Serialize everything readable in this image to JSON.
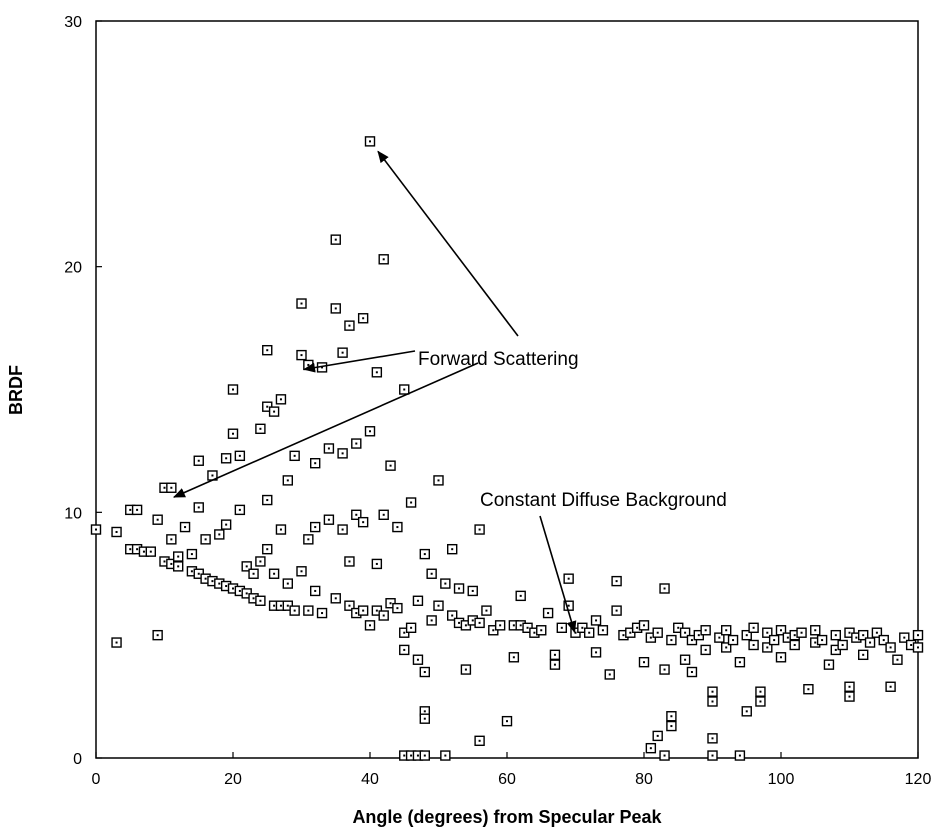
{
  "chart_data": {
    "type": "scatter",
    "xlabel": "Angle (degrees) from Specular Peak",
    "ylabel": "BRDF",
    "xlim": [
      0,
      120
    ],
    "ylim": [
      0,
      30
    ],
    "xticks": [
      "0",
      "20",
      "40",
      "60",
      "80",
      "100",
      "120"
    ],
    "yticks": [
      "0",
      "10",
      "20",
      "30"
    ],
    "grid": false,
    "series": [
      {
        "marker": "square",
        "points": [
          [
            0,
            9.3
          ],
          [
            3,
            4.7
          ],
          [
            3,
            9.2
          ],
          [
            5,
            8.5
          ],
          [
            5,
            10.1
          ],
          [
            6,
            10.1
          ],
          [
            6,
            8.5
          ],
          [
            7,
            8.4
          ],
          [
            8,
            8.4
          ],
          [
            9,
            5.0
          ],
          [
            9,
            9.7
          ],
          [
            10,
            11.0
          ],
          [
            10,
            8.0
          ],
          [
            11,
            11.0
          ],
          [
            11,
            7.9
          ],
          [
            11,
            8.9
          ],
          [
            12,
            8.2
          ],
          [
            12,
            7.8
          ],
          [
            13,
            9.4
          ],
          [
            14,
            7.6
          ],
          [
            14,
            8.3
          ],
          [
            15,
            7.5
          ],
          [
            15,
            10.2
          ],
          [
            15,
            12.1
          ],
          [
            16,
            7.3
          ],
          [
            16,
            8.9
          ],
          [
            17,
            11.5
          ],
          [
            17,
            7.2
          ],
          [
            18,
            9.1
          ],
          [
            18,
            7.1
          ],
          [
            19,
            7.0
          ],
          [
            19,
            9.5
          ],
          [
            19,
            12.2
          ],
          [
            20,
            6.9
          ],
          [
            20,
            13.2
          ],
          [
            20,
            15.0
          ],
          [
            21,
            10.1
          ],
          [
            21,
            6.8
          ],
          [
            21,
            12.3
          ],
          [
            22,
            6.7
          ],
          [
            22,
            7.8
          ],
          [
            23,
            7.5
          ],
          [
            23,
            6.5
          ],
          [
            24,
            13.4
          ],
          [
            24,
            6.4
          ],
          [
            24,
            8.0
          ],
          [
            25,
            16.6
          ],
          [
            25,
            14.3
          ],
          [
            25,
            10.5
          ],
          [
            25,
            8.5
          ],
          [
            26,
            14.1
          ],
          [
            26,
            6.2
          ],
          [
            26,
            7.5
          ],
          [
            27,
            14.6
          ],
          [
            27,
            6.2
          ],
          [
            27,
            9.3
          ],
          [
            28,
            11.3
          ],
          [
            28,
            6.2
          ],
          [
            28,
            7.1
          ],
          [
            29,
            6.0
          ],
          [
            29,
            12.3
          ],
          [
            30,
            18.5
          ],
          [
            30,
            16.4
          ],
          [
            30,
            7.6
          ],
          [
            31,
            16.0
          ],
          [
            31,
            8.9
          ],
          [
            31,
            6.0
          ],
          [
            32,
            12.0
          ],
          [
            32,
            9.4
          ],
          [
            32,
            6.8
          ],
          [
            33,
            15.9
          ],
          [
            33,
            5.9
          ],
          [
            34,
            12.6
          ],
          [
            34,
            9.7
          ],
          [
            35,
            18.3
          ],
          [
            35,
            21.1
          ],
          [
            35,
            6.5
          ],
          [
            36,
            16.5
          ],
          [
            36,
            12.4
          ],
          [
            36,
            9.3
          ],
          [
            37,
            17.6
          ],
          [
            37,
            6.2
          ],
          [
            37,
            8.0
          ],
          [
            38,
            12.8
          ],
          [
            38,
            9.9
          ],
          [
            38,
            5.9
          ],
          [
            39,
            17.9
          ],
          [
            39,
            9.6
          ],
          [
            39,
            6.0
          ],
          [
            40,
            25.1
          ],
          [
            40,
            13.3
          ],
          [
            40,
            5.4
          ],
          [
            41,
            15.7
          ],
          [
            41,
            7.9
          ],
          [
            41,
            6.0
          ],
          [
            42,
            20.3
          ],
          [
            42,
            9.9
          ],
          [
            42,
            5.8
          ],
          [
            43,
            11.9
          ],
          [
            43,
            6.3
          ],
          [
            44,
            9.4
          ],
          [
            44,
            6.1
          ],
          [
            45,
            15.0
          ],
          [
            45,
            4.4
          ],
          [
            45,
            0.1
          ],
          [
            45,
            5.1
          ],
          [
            46,
            10.4
          ],
          [
            46,
            5.3
          ],
          [
            46,
            0.1
          ],
          [
            47,
            4.0
          ],
          [
            47,
            6.4
          ],
          [
            47,
            0.1
          ],
          [
            48,
            3.5
          ],
          [
            48,
            8.3
          ],
          [
            48,
            1.9
          ],
          [
            48,
            1.6
          ],
          [
            48,
            0.1
          ],
          [
            49,
            7.5
          ],
          [
            49,
            5.6
          ],
          [
            50,
            11.3
          ],
          [
            50,
            6.2
          ],
          [
            51,
            7.1
          ],
          [
            51,
            0.1
          ],
          [
            52,
            8.5
          ],
          [
            52,
            5.8
          ],
          [
            53,
            6.9
          ],
          [
            53,
            5.5
          ],
          [
            54,
            3.6
          ],
          [
            54,
            5.4
          ],
          [
            55,
            6.8
          ],
          [
            55,
            5.6
          ],
          [
            56,
            9.3
          ],
          [
            56,
            0.7
          ],
          [
            56,
            5.5
          ],
          [
            57,
            6.0
          ],
          [
            58,
            5.2
          ],
          [
            59,
            5.4
          ],
          [
            60,
            1.5
          ],
          [
            61,
            4.1
          ],
          [
            61,
            5.4
          ],
          [
            62,
            6.6
          ],
          [
            62,
            5.4
          ],
          [
            63,
            5.3
          ],
          [
            64,
            5.1
          ],
          [
            65,
            5.2
          ],
          [
            66,
            5.9
          ],
          [
            67,
            3.8
          ],
          [
            67,
            4.2
          ],
          [
            68,
            5.3
          ],
          [
            69,
            7.3
          ],
          [
            69,
            6.2
          ],
          [
            70,
            5.1
          ],
          [
            71,
            5.3
          ],
          [
            72,
            5.1
          ],
          [
            73,
            4.3
          ],
          [
            73,
            5.6
          ],
          [
            74,
            5.2
          ],
          [
            75,
            3.4
          ],
          [
            76,
            7.2
          ],
          [
            76,
            6.0
          ],
          [
            77,
            5.0
          ],
          [
            78,
            5.1
          ],
          [
            79,
            5.3
          ],
          [
            80,
            3.9
          ],
          [
            80,
            5.4
          ],
          [
            81,
            0.4
          ],
          [
            81,
            4.9
          ],
          [
            82,
            0.9
          ],
          [
            82,
            5.1
          ],
          [
            83,
            6.9
          ],
          [
            83,
            3.6
          ],
          [
            83,
            0.1
          ],
          [
            84,
            4.8
          ],
          [
            84,
            1.7
          ],
          [
            84,
            1.3
          ],
          [
            85,
            5.3
          ],
          [
            86,
            4.0
          ],
          [
            86,
            5.1
          ],
          [
            87,
            3.5
          ],
          [
            87,
            4.8
          ],
          [
            88,
            5.0
          ],
          [
            89,
            4.4
          ],
          [
            89,
            5.2
          ],
          [
            90,
            2.7
          ],
          [
            90,
            2.3
          ],
          [
            90,
            0.8
          ],
          [
            90,
            0.1
          ],
          [
            91,
            4.9
          ],
          [
            92,
            4.5
          ],
          [
            92,
            5.2
          ],
          [
            93,
            4.8
          ],
          [
            94,
            3.9
          ],
          [
            94,
            0.1
          ],
          [
            95,
            5.0
          ],
          [
            95,
            1.9
          ],
          [
            96,
            4.6
          ],
          [
            96,
            5.3
          ],
          [
            97,
            2.7
          ],
          [
            97,
            2.3
          ],
          [
            98,
            5.1
          ],
          [
            98,
            4.5
          ],
          [
            99,
            4.8
          ],
          [
            100,
            4.1
          ],
          [
            100,
            5.2
          ],
          [
            101,
            4.9
          ],
          [
            102,
            4.6
          ],
          [
            102,
            5.0
          ],
          [
            103,
            5.1
          ],
          [
            104,
            2.8
          ],
          [
            105,
            4.7
          ],
          [
            105,
            5.2
          ],
          [
            106,
            4.8
          ],
          [
            107,
            3.8
          ],
          [
            108,
            4.4
          ],
          [
            108,
            5.0
          ],
          [
            109,
            4.6
          ],
          [
            110,
            5.1
          ],
          [
            110,
            2.9
          ],
          [
            110,
            2.5
          ],
          [
            111,
            4.9
          ],
          [
            112,
            4.2
          ],
          [
            112,
            5.0
          ],
          [
            113,
            4.7
          ],
          [
            114,
            5.1
          ],
          [
            115,
            4.8
          ],
          [
            116,
            2.9
          ],
          [
            116,
            4.5
          ],
          [
            117,
            4.0
          ],
          [
            118,
            4.9
          ],
          [
            119,
            4.6
          ],
          [
            120,
            5.0
          ],
          [
            120,
            4.5
          ]
        ]
      }
    ],
    "annotations": [
      {
        "text": "Forward Scattering",
        "arrows_to": [
          [
            40,
            25.1
          ],
          [
            29.5,
            15.9
          ],
          [
            10.5,
            10.7
          ]
        ]
      },
      {
        "text": "Constant Diffuse Background",
        "arrows_to": [
          [
            69,
            5.2
          ]
        ]
      }
    ]
  }
}
